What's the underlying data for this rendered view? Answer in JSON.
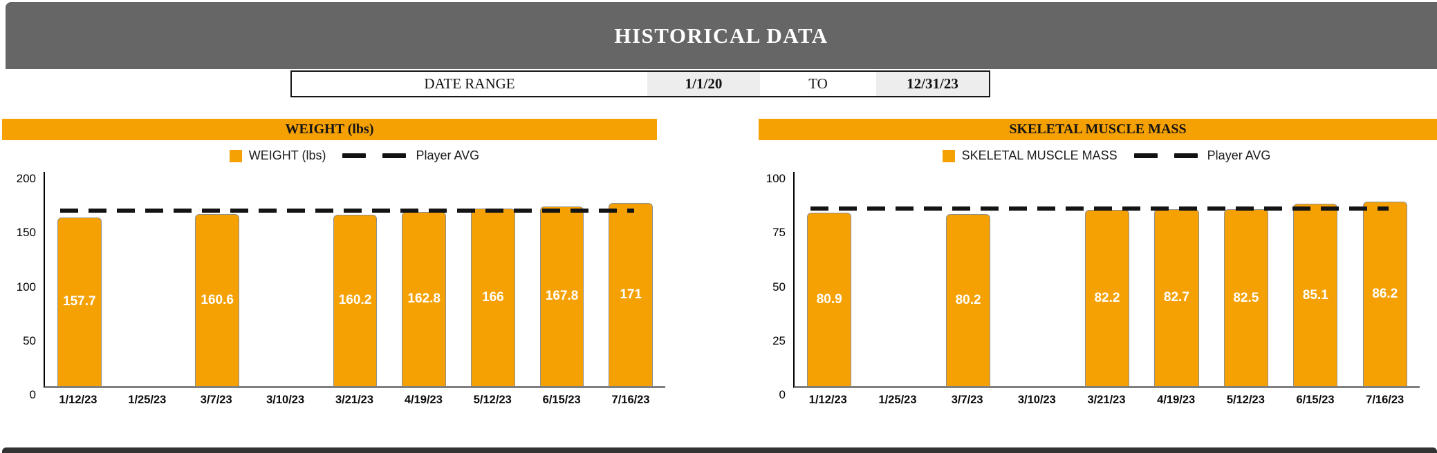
{
  "page": {
    "title": "HISTORICAL DATA"
  },
  "date_range": {
    "label": "DATE RANGE",
    "from_value": "1/1/20",
    "to_word": "TO",
    "to_value": "12/31/23"
  },
  "colors": {
    "accent_orange": "#F5A104",
    "bar_border": "#8E8E8E",
    "header_gray": "#666666",
    "cell_gray": "#EDEDED",
    "baseline_gray": "#7F7F7F",
    "dash_black": "#141414"
  },
  "chart_data": [
    {
      "type": "bar",
      "title": "WEIGHT (lbs)",
      "legend": [
        "WEIGHT (lbs)",
        "Player AVG"
      ],
      "legend_position": "top",
      "grid": false,
      "categories": [
        "1/12/23",
        "1/25/23",
        "3/7/23",
        "3/10/23",
        "3/21/23",
        "4/19/23",
        "5/12/23",
        "6/15/23",
        "7/16/23"
      ],
      "values": [
        157.7,
        null,
        160.6,
        null,
        160.2,
        162.8,
        166,
        167.8,
        171
      ],
      "bar_labels": [
        "157.7",
        "",
        "160.6",
        "",
        "160.2",
        "162.8",
        "166",
        "167.8",
        "171"
      ],
      "player_avg": 163.7,
      "ylim": [
        0,
        200
      ],
      "yticks": [
        200,
        150,
        100,
        50,
        0
      ],
      "bar_color": "#F5A104"
    },
    {
      "type": "bar",
      "title": "SKELETAL MUSCLE MASS",
      "legend": [
        "SKELETAL MUSCLE MASS",
        "Player AVG"
      ],
      "legend_position": "top",
      "grid": false,
      "categories": [
        "1/12/23",
        "1/25/23",
        "3/7/23",
        "3/10/23",
        "3/21/23",
        "4/19/23",
        "5/12/23",
        "6/15/23",
        "7/16/23"
      ],
      "values": [
        80.9,
        null,
        80.2,
        null,
        82.2,
        82.7,
        82.5,
        85.1,
        86.2
      ],
      "bar_labels": [
        "80.9",
        "",
        "80.2",
        "",
        "82.2",
        "82.7",
        "82.5",
        "85.1",
        "86.2"
      ],
      "player_avg": 82.8,
      "ylim": [
        0,
        100
      ],
      "yticks": [
        100,
        75,
        50,
        25,
        0
      ],
      "bar_color": "#F5A104"
    }
  ]
}
